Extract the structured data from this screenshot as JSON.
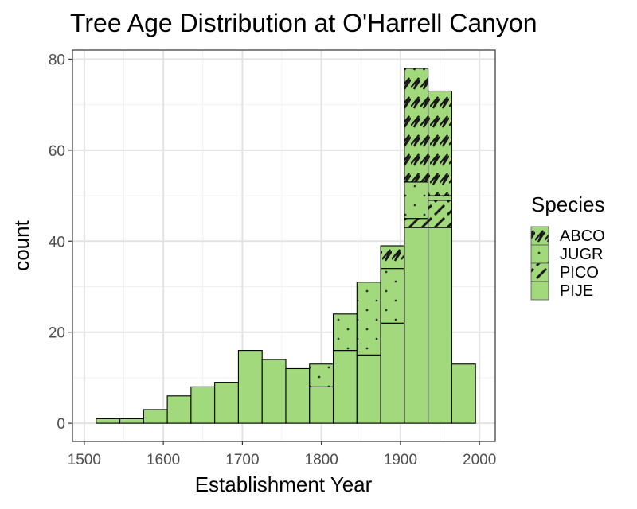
{
  "chart_data": {
    "type": "bar",
    "title": "Tree Age Distribution at O'Harrell Canyon",
    "xlabel": "Establishment Year",
    "ylabel": "count",
    "xlim": [
      1485,
      2020
    ],
    "ylim": [
      -4,
      82
    ],
    "xticks": [
      1500,
      1600,
      1700,
      1800,
      1900,
      2000
    ],
    "yticks": [
      0,
      20,
      40,
      60,
      80
    ],
    "grid": true,
    "bar_fill": "#a1d97c",
    "legend": {
      "title": "Species",
      "position": "right"
    },
    "series": [
      {
        "name": "ABCO",
        "pattern": "zigzag"
      },
      {
        "name": "JUGR",
        "pattern": "dots"
      },
      {
        "name": "PICO",
        "pattern": "stripe"
      },
      {
        "name": "PIJE",
        "pattern": "none"
      }
    ],
    "bins": [
      {
        "x0": 1515,
        "x1": 1545,
        "counts": {
          "PIJE": 1,
          "PICO": 0,
          "JUGR": 0,
          "ABCO": 0
        }
      },
      {
        "x0": 1545,
        "x1": 1575,
        "counts": {
          "PIJE": 1,
          "PICO": 0,
          "JUGR": 0,
          "ABCO": 0
        }
      },
      {
        "x0": 1575,
        "x1": 1605,
        "counts": {
          "PIJE": 3,
          "PICO": 0,
          "JUGR": 0,
          "ABCO": 0
        }
      },
      {
        "x0": 1605,
        "x1": 1635,
        "counts": {
          "PIJE": 6,
          "PICO": 0,
          "JUGR": 0,
          "ABCO": 0
        }
      },
      {
        "x0": 1635,
        "x1": 1665,
        "counts": {
          "PIJE": 8,
          "PICO": 0,
          "JUGR": 0,
          "ABCO": 0
        }
      },
      {
        "x0": 1665,
        "x1": 1695,
        "counts": {
          "PIJE": 9,
          "PICO": 0,
          "JUGR": 0,
          "ABCO": 0
        }
      },
      {
        "x0": 1695,
        "x1": 1725,
        "counts": {
          "PIJE": 16,
          "PICO": 0,
          "JUGR": 0,
          "ABCO": 0
        }
      },
      {
        "x0": 1725,
        "x1": 1755,
        "counts": {
          "PIJE": 14,
          "PICO": 0,
          "JUGR": 0,
          "ABCO": 0
        }
      },
      {
        "x0": 1755,
        "x1": 1785,
        "counts": {
          "PIJE": 12,
          "PICO": 0,
          "JUGR": 0,
          "ABCO": 0
        }
      },
      {
        "x0": 1785,
        "x1": 1815,
        "counts": {
          "PIJE": 8,
          "PICO": 0,
          "JUGR": 5,
          "ABCO": 0
        }
      },
      {
        "x0": 1815,
        "x1": 1845,
        "counts": {
          "PIJE": 16,
          "PICO": 0,
          "JUGR": 8,
          "ABCO": 0
        }
      },
      {
        "x0": 1845,
        "x1": 1875,
        "counts": {
          "PIJE": 15,
          "PICO": 0,
          "JUGR": 16,
          "ABCO": 0
        }
      },
      {
        "x0": 1875,
        "x1": 1905,
        "counts": {
          "PIJE": 22,
          "PICO": 0,
          "JUGR": 12,
          "ABCO": 5
        }
      },
      {
        "x0": 1905,
        "x1": 1935,
        "counts": {
          "PIJE": 43,
          "PICO": 2,
          "JUGR": 8,
          "ABCO": 25
        }
      },
      {
        "x0": 1935,
        "x1": 1965,
        "counts": {
          "PIJE": 43,
          "PICO": 6,
          "JUGR": 1,
          "ABCO": 23
        }
      },
      {
        "x0": 1965,
        "x1": 1995,
        "counts": {
          "PIJE": 13,
          "PICO": 0,
          "JUGR": 0,
          "ABCO": 0
        }
      }
    ]
  }
}
